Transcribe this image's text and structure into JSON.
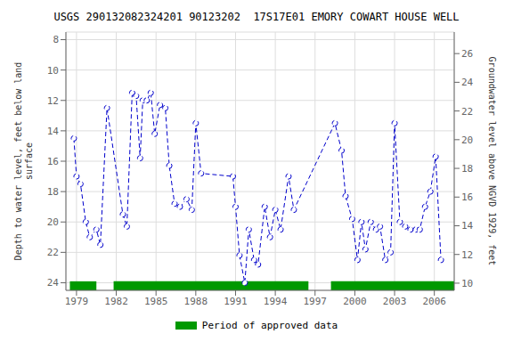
{
  "chart_data": {
    "type": "line",
    "title": "USGS 290132082324201 90123202  17S17E01 EMORY COWART HOUSE WELL",
    "ylabel": "Depth to water level, feet below land\nsurface",
    "y2label": "Groundwater level above NGVD 1929, feet",
    "x": [
      1978.8,
      1979.0,
      1979.3,
      1979.7,
      1980.0,
      1980.5,
      1980.8,
      1981.3,
      1982.5,
      1982.8,
      1983.2,
      1983.5,
      1983.8,
      1984.0,
      1984.3,
      1984.6,
      1984.9,
      1985.3,
      1985.7,
      1986.0,
      1986.4,
      1986.8,
      1987.3,
      1987.7,
      1988.0,
      1988.4,
      1990.8,
      1991.0,
      1991.3,
      1991.7,
      1992.0,
      1992.4,
      1992.7,
      1993.2,
      1993.6,
      1994.0,
      1994.4,
      1995.0,
      1995.4,
      1998.5,
      1999.0,
      1999.3,
      1999.8,
      2000.2,
      2000.5,
      2000.8,
      2001.2,
      2001.6,
      2001.9,
      2002.3,
      2002.7,
      2003.0,
      2003.4,
      2003.8,
      2004.2,
      2004.6,
      2004.9,
      2005.3,
      2005.7,
      2006.1,
      2006.5
    ],
    "values": [
      14.5,
      17.0,
      17.5,
      20.0,
      21.0,
      20.5,
      21.5,
      12.5,
      19.5,
      20.3,
      11.5,
      11.7,
      15.8,
      12.0,
      12.0,
      11.5,
      14.2,
      12.3,
      12.5,
      16.3,
      18.8,
      19.0,
      18.5,
      19.2,
      13.5,
      16.8,
      17.0,
      19.0,
      22.2,
      24.0,
      20.5,
      22.5,
      22.8,
      19.0,
      21.0,
      19.2,
      20.5,
      17.0,
      19.2,
      13.5,
      15.3,
      18.3,
      19.8,
      22.5,
      20.0,
      21.8,
      20.0,
      20.5,
      20.3,
      22.5,
      22.0,
      13.5,
      20.0,
      20.3,
      20.5,
      20.5,
      20.5,
      19.0,
      18.0,
      15.7,
      22.5
    ],
    "color": "#0000cc",
    "marker": "o",
    "line_style": "dashed",
    "xlim": [
      1978.2,
      2007.5
    ],
    "xticks": [
      1979,
      1982,
      1985,
      1988,
      1991,
      1994,
      1997,
      2000,
      2003,
      2006
    ],
    "ylim": [
      24.5,
      7.5
    ],
    "yticks": [
      8,
      10,
      12,
      14,
      16,
      18,
      20,
      22,
      24
    ],
    "y2lim": [
      9.5,
      27.5
    ],
    "y2ticks": [
      26,
      24,
      22,
      20,
      18,
      16,
      14,
      12,
      10
    ],
    "grid": true,
    "legend": "bottom",
    "approved_periods": [
      [
        1978.5,
        1980.5
      ],
      [
        1981.8,
        1996.5
      ],
      [
        1998.2,
        2007.5
      ]
    ],
    "approved_label": "Period of approved data",
    "approved_color": "#009900"
  }
}
